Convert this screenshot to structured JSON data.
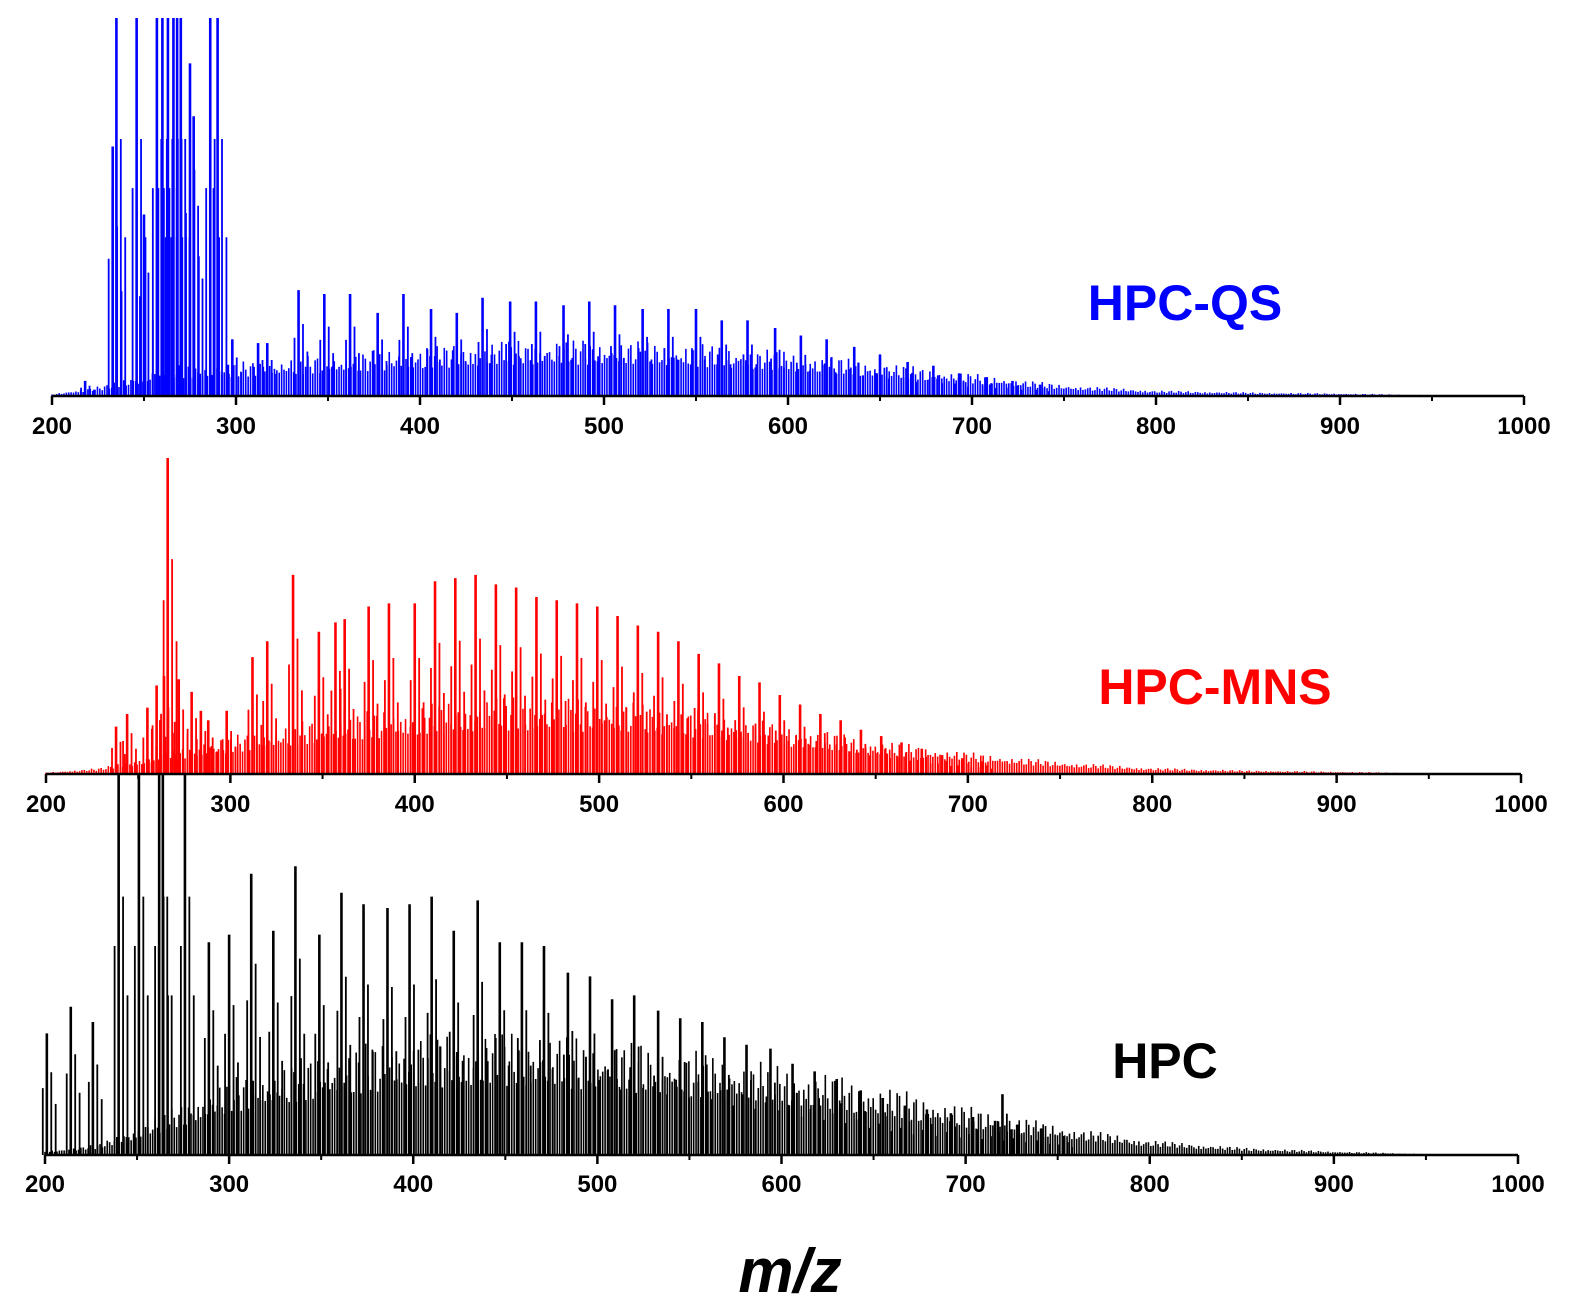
{
  "chart_data": {
    "type": "bar",
    "title": "",
    "xlabel": "m/z",
    "ylabel": "",
    "xlim": [
      200,
      1000
    ],
    "x_ticks": [
      200,
      300,
      400,
      500,
      600,
      700,
      800,
      900,
      1000
    ],
    "x_tick_labels": [
      "200",
      "300",
      "400",
      "500",
      "600",
      "700",
      "800",
      "900",
      "1000"
    ],
    "grid": false,
    "legend": "none (series labels placed right of each panel)",
    "panels": [
      {
        "name": "HPC-QS",
        "label": "HPC-QS",
        "color": "#0000ff",
        "ylim": [
          0,
          100
        ],
        "series": [
          {
            "name": "major peaks",
            "x": [
              218,
              233,
              235,
              246,
              250,
              257,
              260,
              263,
              266,
              268,
              270,
              275,
              277,
              286,
              290,
              298,
              312,
              317,
              334,
              348,
              362,
              377,
              391,
              406,
              420,
              434,
              449,
              463,
              478,
              492,
              506,
              521,
              535,
              550,
              564,
              578,
              593,
              607,
              621,
              636,
              650,
              665,
              679,
              693,
              708,
              722,
              737
            ],
            "values": [
              4,
              66,
              100,
              100,
              48,
              100,
              100,
              100,
              100,
              100,
              100,
              88,
              74,
              100,
              100,
              15,
              14,
              14,
              28,
              27,
              27,
              22,
              27,
              23,
              22,
              26,
              25,
              25,
              24,
              25,
              24,
              23,
              23,
              23,
              20,
              20,
              18,
              16,
              15,
              13,
              11,
              9,
              8,
              6,
              5,
              4,
              3
            ]
          },
          {
            "name": "baseline envelope",
            "x": [
              200,
              230,
              260,
              300,
              350,
              400,
              450,
              500,
              550,
              600,
              650,
              700,
              750,
              800,
              850,
              900,
              960
            ],
            "values": [
              0.5,
              3,
              8,
              9,
              11,
              13,
              15,
              15,
              14,
              12,
              9,
              6,
              3,
              1.5,
              1,
              0.7,
              0.2
            ]
          }
        ]
      },
      {
        "name": "HPC-MNS",
        "label": "HPC-MNS",
        "color": "#ff0000",
        "ylim": [
          0,
          100
        ],
        "series": [
          {
            "name": "major peaks",
            "x": [
              238,
              244,
              255,
              260,
              264,
              266,
              272,
              279,
              284,
              288,
              298,
              312,
              320,
              334,
              348,
              357,
              362,
              375,
              386,
              400,
              411,
              422,
              433,
              444,
              455,
              466,
              477,
              488,
              499,
              510,
              521,
              532,
              543,
              554,
              565,
              576,
              587,
              598,
              609,
              620,
              631,
              642,
              653,
              664,
              675,
              686,
              697,
              708
            ],
            "values": [
              15,
              19,
              21,
              28,
              31,
              100,
              30,
              26,
              20,
              17,
              20,
              37,
              42,
              63,
              45,
              48,
              49,
              53,
              54,
              54,
              61,
              62,
              63,
              60,
              59,
              56,
              55,
              54,
              53,
              50,
              47,
              45,
              42,
              38,
              35,
              31,
              29,
              25,
              22,
              19,
              17,
              14,
              12,
              10,
              8,
              6,
              5,
              4
            ]
          },
          {
            "name": "baseline envelope",
            "x": [
              200,
              230,
              250,
              300,
              350,
              400,
              450,
              500,
              550,
              600,
              650,
              700,
              750,
              800,
              850,
              900,
              950
            ],
            "values": [
              0.5,
              2,
              5,
              12,
              18,
              22,
              25,
              24,
              21,
              16,
              11,
              7,
              4,
              2,
              1.2,
              0.8,
              0.3
            ]
          }
        ]
      },
      {
        "name": "HPC",
        "label": "HPC",
        "color": "#000000",
        "ylim": [
          0,
          100
        ],
        "series": [
          {
            "name": "major peaks",
            "x": [
              201,
              214,
              226,
              240,
              251,
              262,
              264,
              276,
              289,
              300,
              312,
              324,
              336,
              349,
              361,
              373,
              386,
              398,
              410,
              422,
              435,
              447,
              459,
              471,
              484,
              496,
              508,
              520,
              533,
              545,
              557,
              569,
              581,
              594,
              606,
              618,
              630,
              643,
              655,
              667,
              679,
              692,
              704,
              716,
              720,
              728,
              741,
              753
            ],
            "values": [
              32,
              39,
              35,
              100,
              100,
              100,
              100,
              100,
              56,
              58,
              74,
              59,
              76,
              58,
              69,
              66,
              65,
              66,
              68,
              59,
              67,
              56,
              56,
              55,
              48,
              47,
              41,
              42,
              38,
              36,
              35,
              31,
              29,
              28,
              24,
              22,
              20,
              17,
              15,
              13,
              12,
              11,
              10,
              9,
              16,
              8,
              7,
              5
            ]
          },
          {
            "name": "baseline envelope",
            "x": [
              200,
              230,
              260,
              300,
              350,
              400,
              450,
              500,
              550,
              600,
              650,
              700,
              750,
              800,
              850,
              900,
              950
            ],
            "values": [
              1,
              3,
              10,
              20,
              27,
              32,
              33,
              31,
              28,
              24,
              19,
              13,
              8,
              4,
              2,
              1,
              0.3
            ]
          }
        ]
      }
    ]
  }
}
